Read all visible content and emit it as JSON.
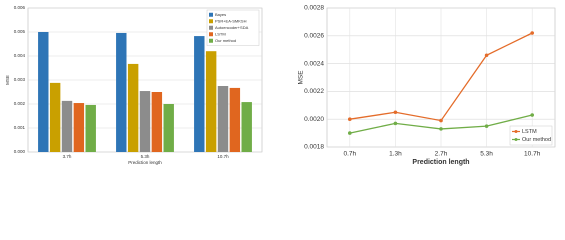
{
  "chart_data": [
    {
      "type": "bar",
      "x_label": "Prediction length",
      "y_label": "MSE",
      "categories": [
        "3.7h",
        "5.3h",
        "10.7h"
      ],
      "series": [
        {
          "name": "Bayes",
          "color": "#2e75b6",
          "values": [
            0.005,
            0.00496,
            0.00483
          ]
        },
        {
          "name": "PSR+EA-SMKSH",
          "color": "#c9a000",
          "values": [
            0.00288,
            0.00367,
            0.0042
          ]
        },
        {
          "name": "Autoencoder+SDA",
          "color": "#8c8c8c",
          "values": [
            0.00213,
            0.00254,
            0.00275
          ]
        },
        {
          "name": "LSTM",
          "color": "#e0661f",
          "values": [
            0.00204,
            0.0025,
            0.00267
          ]
        },
        {
          "name": "Our method",
          "color": "#70ad47",
          "values": [
            0.00196,
            0.002,
            0.00208
          ]
        }
      ],
      "ylim": [
        0,
        0.006
      ],
      "yticks": [
        {
          "value": 0,
          "label": "0.000"
        },
        0.001,
        0.002,
        0.003,
        0.004,
        0.005,
        0.006
      ],
      "grid": true,
      "legend": "top-right"
    },
    {
      "type": "line",
      "x_label": "Prediction length",
      "y_label": "MSE",
      "categories": [
        "0.7h",
        "1.3h",
        "2.7h",
        "5.3h",
        "10.7h"
      ],
      "series": [
        {
          "name": "LSTM",
          "color": "#e46c2a",
          "values": [
            0.002,
            0.00205,
            0.00199,
            0.00246,
            0.00262
          ]
        },
        {
          "name": "Our method",
          "color": "#70ad47",
          "values": [
            0.0019,
            0.00197,
            0.00193,
            0.00195,
            0.00203
          ]
        }
      ],
      "ylim": [
        0.0018,
        0.0028
      ],
      "yticks": [
        0.0018,
        {
          "value": 0.002,
          "label": "0.0020"
        },
        0.0022,
        0.0024,
        0.0026,
        0.0028
      ],
      "grid": true,
      "legend": "bottom-right"
    }
  ]
}
